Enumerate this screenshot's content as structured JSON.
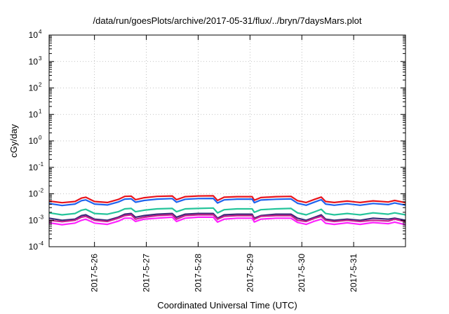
{
  "chart_data": {
    "type": "line",
    "title": "/data/run/goesPlots/archive/2017-05-31/flux/../bryn/7daysMars.plot",
    "xlabel": "Coordinated Universal Time (UTC)",
    "ylabel": "cGy/day",
    "y_scale": "log",
    "ylim": [
      0.0001,
      10000
    ],
    "y_tick_labels": [
      {
        "base": "10",
        "exp": "-4",
        "value": 0.0001
      },
      {
        "base": "10",
        "exp": "-3",
        "value": 0.001
      },
      {
        "base": "10",
        "exp": "-2",
        "value": 0.01
      },
      {
        "base": "10",
        "exp": "-1",
        "value": 0.1
      },
      {
        "base": "10",
        "exp": "0",
        "value": 1
      },
      {
        "base": "10",
        "exp": "1",
        "value": 10
      },
      {
        "base": "10",
        "exp": "2",
        "value": 100
      },
      {
        "base": "10",
        "exp": "3",
        "value": 1000
      },
      {
        "base": "10",
        "exp": "4",
        "value": 10000
      }
    ],
    "xlim": [
      "2017-05-25 03:00",
      "2017-06-01 00:00"
    ],
    "x_ticks": [
      "2017-5-26",
      "2017-5-27",
      "2017-5-28",
      "2017-5-29",
      "2017-5-30",
      "2017-5-31"
    ],
    "grid": true,
    "legend": "none",
    "x": [
      "2017-05-25 03:00",
      "2017-05-25 09:00",
      "2017-05-25 15:00",
      "2017-05-25 18:00",
      "2017-05-25 20:00",
      "2017-05-26 00:00",
      "2017-05-26 06:00",
      "2017-05-26 11:00",
      "2017-05-26 14:00",
      "2017-05-26 17:00",
      "2017-05-26 19:00",
      "2017-05-26 23:00",
      "2017-05-27 05:00",
      "2017-05-27 12:00",
      "2017-05-27 14:00",
      "2017-05-27 18:00",
      "2017-05-28 00:00",
      "2017-05-28 07:00",
      "2017-05-28 09:00",
      "2017-05-28 12:00",
      "2017-05-28 18:00",
      "2017-05-29 01:00",
      "2017-05-29 02:00",
      "2017-05-29 05:00",
      "2017-05-29 12:00",
      "2017-05-29 19:00",
      "2017-05-29 22:00",
      "2017-05-30 02:00",
      "2017-05-30 06:00",
      "2017-05-30 09:00",
      "2017-05-30 11:00",
      "2017-05-30 15:00",
      "2017-05-30 21:00",
      "2017-05-31 03:00",
      "2017-05-31 09:00",
      "2017-05-31 16:00",
      "2017-05-31 19:00",
      "2017-06-01 00:00"
    ],
    "series": [
      {
        "color": "#e8141c",
        "values": [
          0.0053,
          0.0046,
          0.0051,
          0.0069,
          0.0074,
          0.0051,
          0.0047,
          0.0061,
          0.008,
          0.0082,
          0.006,
          0.0071,
          0.008,
          0.0083,
          0.006,
          0.0078,
          0.0083,
          0.0084,
          0.0056,
          0.0074,
          0.0078,
          0.0078,
          0.0057,
          0.0072,
          0.0078,
          0.008,
          0.0055,
          0.0047,
          0.0062,
          0.0075,
          0.0051,
          0.0047,
          0.0053,
          0.0047,
          0.0054,
          0.0049,
          0.0056,
          0.0046
        ]
      },
      {
        "color": "#1f63ee",
        "values": [
          0.0043,
          0.0036,
          0.0041,
          0.0055,
          0.0059,
          0.0041,
          0.0038,
          0.0049,
          0.0063,
          0.0065,
          0.0048,
          0.0056,
          0.0063,
          0.0066,
          0.0048,
          0.0062,
          0.0066,
          0.0067,
          0.0045,
          0.0059,
          0.0063,
          0.0063,
          0.0046,
          0.0058,
          0.0062,
          0.0064,
          0.0044,
          0.0037,
          0.0049,
          0.006,
          0.0041,
          0.0037,
          0.0042,
          0.0037,
          0.0043,
          0.0039,
          0.0045,
          0.0037
        ]
      },
      {
        "color": "#25c49a",
        "values": [
          0.0019,
          0.0016,
          0.0018,
          0.0024,
          0.0026,
          0.0018,
          0.0017,
          0.0021,
          0.0027,
          0.0028,
          0.0021,
          0.0024,
          0.0027,
          0.0028,
          0.0021,
          0.0027,
          0.0028,
          0.0029,
          0.0019,
          0.0025,
          0.0027,
          0.0027,
          0.002,
          0.0025,
          0.0027,
          0.0028,
          0.0019,
          0.0016,
          0.0021,
          0.0026,
          0.0018,
          0.0016,
          0.0018,
          0.0016,
          0.0019,
          0.0017,
          0.0019,
          0.0016
        ]
      },
      {
        "color": "#3a2a7a",
        "values": [
          0.0012,
          0.001,
          0.0011,
          0.0015,
          0.0016,
          0.0011,
          0.001,
          0.0013,
          0.0017,
          0.0018,
          0.0013,
          0.0015,
          0.0017,
          0.0018,
          0.0013,
          0.0017,
          0.0018,
          0.0018,
          0.0012,
          0.0016,
          0.0017,
          0.0017,
          0.0012,
          0.0015,
          0.0017,
          0.0017,
          0.0012,
          0.001,
          0.0013,
          0.0016,
          0.0011,
          0.001,
          0.0011,
          0.001,
          0.0012,
          0.0011,
          0.0012,
          0.001
        ]
      },
      {
        "color": "#c8208e",
        "values": [
          0.001,
          0.00088,
          0.001,
          0.0013,
          0.0014,
          0.001,
          0.0009,
          0.0012,
          0.0015,
          0.0016,
          0.0011,
          0.0013,
          0.0015,
          0.0016,
          0.0011,
          0.0015,
          0.0016,
          0.0016,
          0.0011,
          0.0014,
          0.0015,
          0.0015,
          0.0011,
          0.0014,
          0.0015,
          0.0015,
          0.001,
          0.0009,
          0.0012,
          0.0014,
          0.001,
          0.0009,
          0.001,
          0.0009,
          0.001,
          0.00093,
          0.0011,
          0.00088
        ]
      },
      {
        "color": "#ff22ff",
        "values": [
          0.0008,
          0.00068,
          0.00078,
          0.001,
          0.0011,
          0.00078,
          0.0007,
          0.00092,
          0.0012,
          0.0012,
          0.0009,
          0.0011,
          0.0012,
          0.0013,
          0.0009,
          0.0012,
          0.0013,
          0.0013,
          0.00085,
          0.0011,
          0.0012,
          0.0012,
          0.00086,
          0.0011,
          0.0012,
          0.0012,
          0.00083,
          0.0007,
          0.00093,
          0.0011,
          0.00077,
          0.0007,
          0.0008,
          0.0007,
          0.00082,
          0.00074,
          0.00085,
          0.00068
        ]
      }
    ]
  }
}
